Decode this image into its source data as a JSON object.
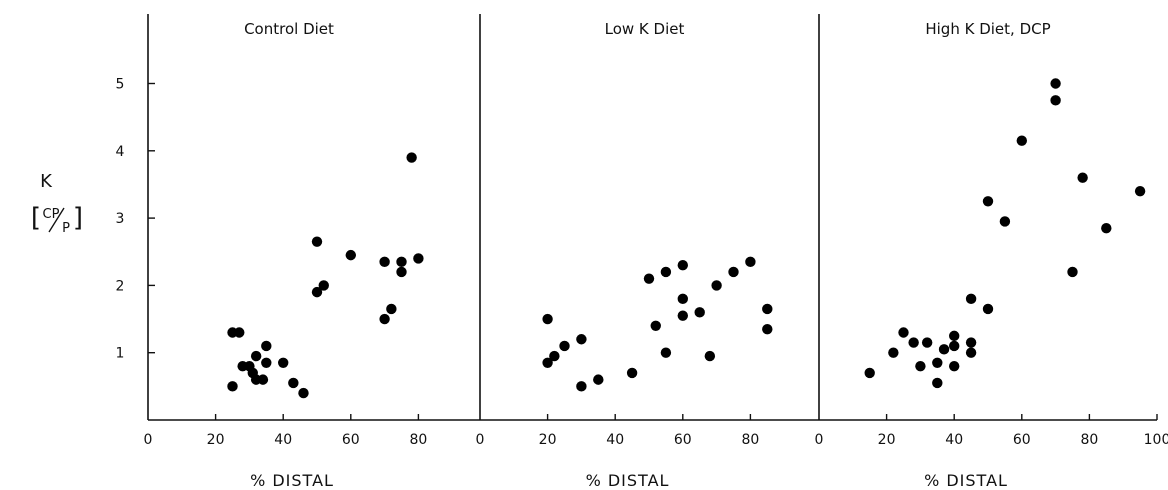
{
  "chart_data": [
    {
      "type": "scatter",
      "title": "Control Diet",
      "xlabel": "% DISTAL",
      "ylabel": "K [CP/P]",
      "xlim": [
        0,
        100
      ],
      "ylim": [
        0,
        6
      ],
      "xticks": [
        "0",
        "20",
        "40",
        "60",
        "80"
      ],
      "yticks": [
        "1",
        "2",
        "3",
        "4",
        "5"
      ],
      "points": [
        [
          25,
          1.3
        ],
        [
          27,
          1.3
        ],
        [
          25,
          0.5
        ],
        [
          28,
          0.8
        ],
        [
          30,
          0.8
        ],
        [
          31,
          0.7
        ],
        [
          32,
          0.95
        ],
        [
          32,
          0.6
        ],
        [
          34,
          0.6
        ],
        [
          35,
          1.1
        ],
        [
          35,
          0.85
        ],
        [
          40,
          0.85
        ],
        [
          43,
          0.55
        ],
        [
          46,
          0.4
        ],
        [
          50,
          2.65
        ],
        [
          50,
          1.9
        ],
        [
          52,
          2.0
        ],
        [
          60,
          2.45
        ],
        [
          70,
          2.35
        ],
        [
          70,
          1.5
        ],
        [
          72,
          1.65
        ],
        [
          75,
          2.35
        ],
        [
          75,
          2.2
        ],
        [
          78,
          3.9
        ],
        [
          80,
          2.4
        ]
      ]
    },
    {
      "type": "scatter",
      "title": "Low K Diet",
      "xlabel": "% DISTAL",
      "xlim": [
        0,
        100
      ],
      "ylim": [
        0,
        6
      ],
      "xticks": [
        "0",
        "20",
        "40",
        "60",
        "80"
      ],
      "points": [
        [
          20,
          1.5
        ],
        [
          20,
          0.85
        ],
        [
          22,
          0.95
        ],
        [
          25,
          1.1
        ],
        [
          30,
          1.2
        ],
        [
          30,
          0.5
        ],
        [
          35,
          0.6
        ],
        [
          45,
          0.7
        ],
        [
          50,
          2.1
        ],
        [
          52,
          1.4
        ],
        [
          55,
          2.2
        ],
        [
          55,
          1.0
        ],
        [
          60,
          2.3
        ],
        [
          60,
          1.8
        ],
        [
          60,
          1.55
        ],
        [
          65,
          1.6
        ],
        [
          68,
          0.95
        ],
        [
          70,
          2.0
        ],
        [
          75,
          2.2
        ],
        [
          80,
          2.35
        ],
        [
          85,
          1.65
        ],
        [
          85,
          1.35
        ]
      ]
    },
    {
      "type": "scatter",
      "title": "High K Diet, DCP",
      "xlabel": "% DISTAL",
      "xlim": [
        0,
        100
      ],
      "ylim": [
        0,
        6
      ],
      "xticks": [
        "0",
        "20",
        "40",
        "60",
        "80",
        "100"
      ],
      "points": [
        [
          15,
          0.7
        ],
        [
          22,
          1.0
        ],
        [
          25,
          1.3
        ],
        [
          28,
          1.15
        ],
        [
          30,
          0.8
        ],
        [
          32,
          1.15
        ],
        [
          35,
          0.85
        ],
        [
          35,
          0.55
        ],
        [
          37,
          1.05
        ],
        [
          40,
          1.25
        ],
        [
          40,
          1.1
        ],
        [
          40,
          0.8
        ],
        [
          45,
          1.15
        ],
        [
          45,
          1.0
        ],
        [
          45,
          1.8
        ],
        [
          50,
          1.65
        ],
        [
          50,
          3.25
        ],
        [
          55,
          2.95
        ],
        [
          60,
          4.15
        ],
        [
          70,
          5.0
        ],
        [
          70,
          4.75
        ],
        [
          75,
          2.2
        ],
        [
          78,
          3.6
        ],
        [
          85,
          2.85
        ],
        [
          95,
          3.4
        ]
      ]
    }
  ]
}
